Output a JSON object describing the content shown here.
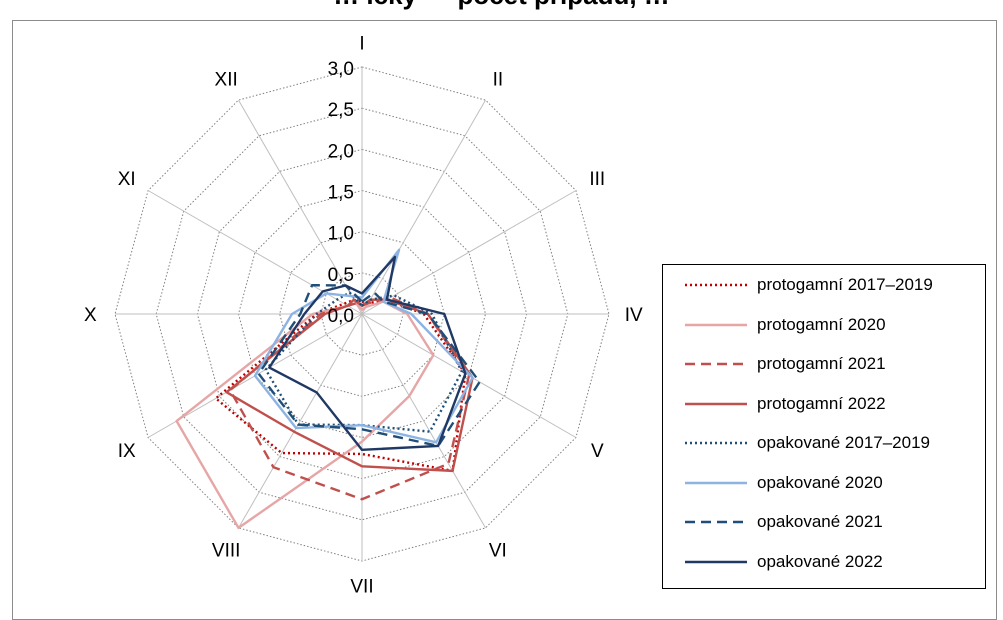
{
  "chart_data": {
    "type": "radar",
    "title": "… ický — počet případů, …",
    "categories": [
      "I",
      "II",
      "III",
      "IV",
      "V",
      "VI",
      "VII",
      "VIII",
      "IX",
      "X",
      "XI",
      "XII"
    ],
    "radial_ticks": [
      "0,0",
      "0,5",
      "1,0",
      "1,5",
      "2,0",
      "2,5",
      "3,0"
    ],
    "rlim": [
      0,
      3
    ],
    "grid": true,
    "legend_position": "right",
    "series": [
      {
        "name": "protogamní 2017–2019",
        "color": "#c00000",
        "line": "dotted",
        "values": [
          0.15,
          0.15,
          0.35,
          0.75,
          1.45,
          2.2,
          1.7,
          1.95,
          2.05,
          0.55,
          0.25,
          0.2
        ]
      },
      {
        "name": "protogamní 2020",
        "color": "#e6a6a6",
        "line": "solid",
        "values": [
          0.05,
          0.1,
          0.3,
          0.55,
          1.0,
          1.15,
          1.55,
          3.0,
          2.6,
          0.6,
          0.2,
          0.15
        ]
      },
      {
        "name": "protogamní 2021",
        "color": "#c0504d",
        "line": "dashed",
        "values": [
          0.1,
          0.15,
          0.4,
          0.8,
          1.5,
          2.1,
          2.25,
          2.15,
          1.85,
          0.5,
          0.2,
          0.15
        ]
      },
      {
        "name": "protogamní 2022",
        "color": "#c0504d",
        "line": "solid",
        "values": [
          0.1,
          0.2,
          0.35,
          0.8,
          1.55,
          2.2,
          1.85,
          1.65,
          1.9,
          0.45,
          0.2,
          0.2
        ]
      },
      {
        "name": "opakované 2017–2019",
        "color": "#1f4e79",
        "line": "dotted",
        "values": [
          0.1,
          0.2,
          0.45,
          0.85,
          1.4,
          1.65,
          1.35,
          1.55,
          1.35,
          0.55,
          0.35,
          0.3
        ]
      },
      {
        "name": "opakované 2020",
        "color": "#8db3e2",
        "line": "solid",
        "values": [
          0.2,
          0.9,
          0.3,
          0.6,
          1.55,
          1.8,
          1.35,
          1.6,
          1.5,
          0.85,
          0.5,
          0.25
        ]
      },
      {
        "name": "opakované 2021",
        "color": "#1f4e79",
        "line": "dashed",
        "values": [
          0.15,
          0.3,
          0.3,
          0.8,
          1.65,
          1.85,
          1.4,
          1.55,
          1.45,
          0.75,
          0.7,
          0.4
        ]
      },
      {
        "name": "opakované 2022",
        "color": "#1f3864",
        "line": "solid",
        "values": [
          0.25,
          0.8,
          0.35,
          1.0,
          1.45,
          1.85,
          1.65,
          1.1,
          1.3,
          0.7,
          0.55,
          0.4
        ]
      }
    ]
  }
}
